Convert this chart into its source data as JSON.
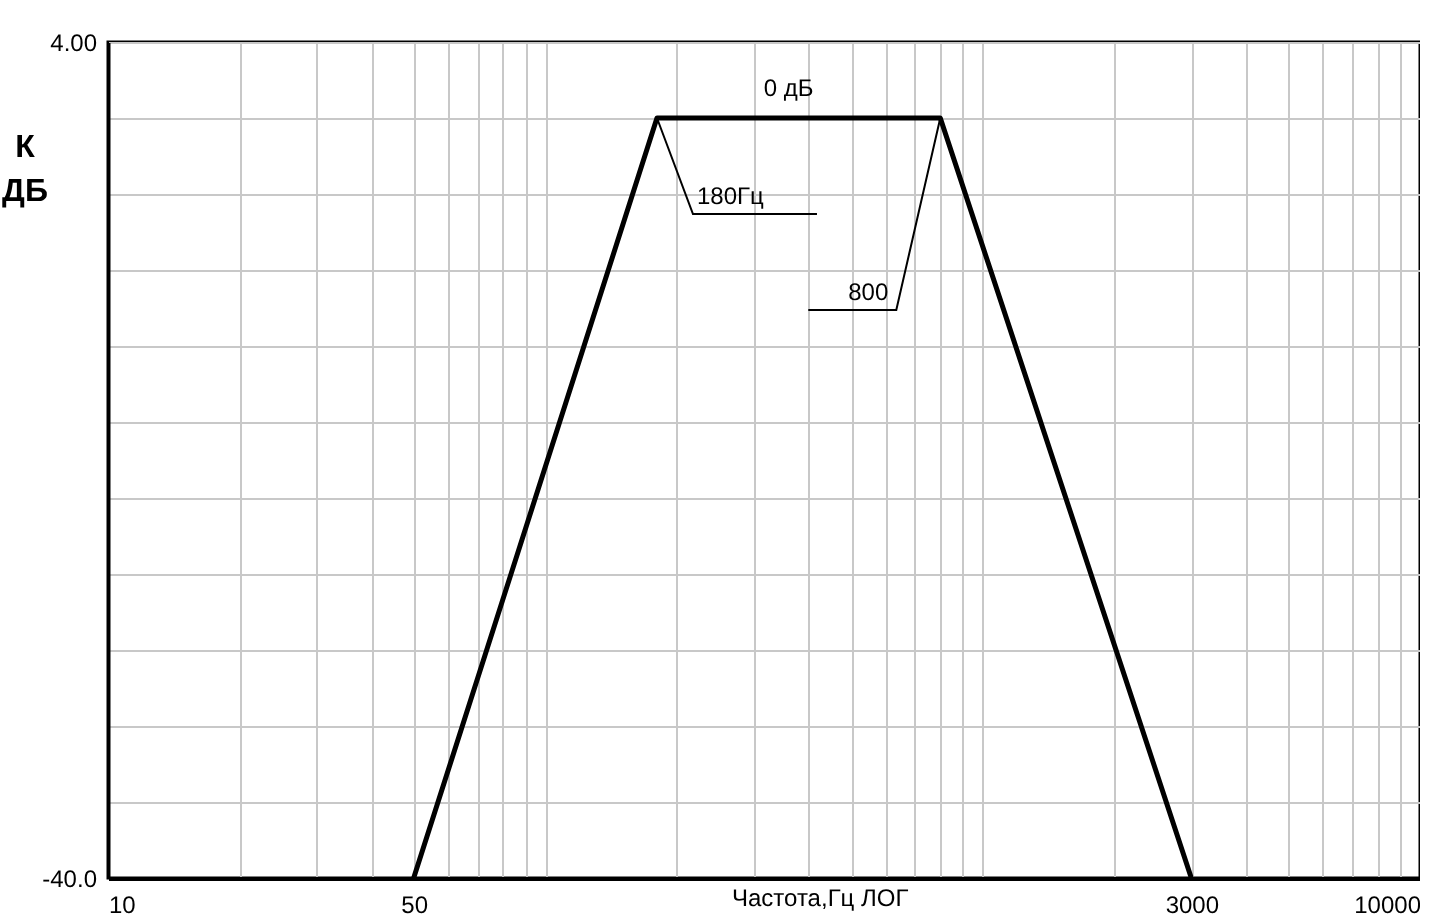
{
  "chart_data": {
    "type": "line",
    "xlabel": "Частота,Гц ЛОГ",
    "ylabel": "К ДБ",
    "log": "x",
    "x": [
      50,
      180,
      800,
      3000
    ],
    "series": [
      {
        "color": "#000000",
        "values": [
          -40,
          0,
          0,
          -40
        ]
      }
    ],
    "xlim": [
      10,
      10000
    ],
    "xticks": [
      10,
      {
        "value": 20,
        "label": null
      },
      {
        "value": 30,
        "label": null
      },
      {
        "value": 40,
        "label": null
      },
      50,
      {
        "value": 60,
        "label": null
      },
      {
        "value": 70,
        "label": null
      },
      {
        "value": 80,
        "label": null
      },
      {
        "value": 90,
        "label": null
      },
      {
        "value": 100,
        "label": null
      },
      {
        "value": 200,
        "label": null
      },
      {
        "value": 300,
        "label": null
      },
      {
        "value": 400,
        "label": null
      },
      {
        "value": 500,
        "label": null
      },
      {
        "value": 600,
        "label": null
      },
      {
        "value": 700,
        "label": null
      },
      {
        "value": 800,
        "label": null
      },
      {
        "value": 900,
        "label": null
      },
      {
        "value": 1000,
        "label": null
      },
      {
        "value": 2000,
        "label": null
      },
      3000,
      {
        "value": 4000,
        "label": null
      },
      {
        "value": 5000,
        "label": null
      },
      {
        "value": 6000,
        "label": null
      },
      {
        "value": 7000,
        "label": null
      },
      {
        "value": 8000,
        "label": null
      },
      {
        "value": 9000,
        "label": null
      },
      10000
    ],
    "ylim": [
      -40,
      4
    ],
    "yticks": [
      {
        "value": 4,
        "label": "4.00"
      },
      {
        "value": 0,
        "label": null
      },
      {
        "value": -4,
        "label": null
      },
      {
        "value": -8,
        "label": null
      },
      {
        "value": -12,
        "label": null
      },
      {
        "value": -16,
        "label": null
      },
      {
        "value": -20,
        "label": null
      },
      {
        "value": -24,
        "label": null
      },
      {
        "value": -28,
        "label": null
      },
      {
        "value": -32,
        "label": null
      },
      {
        "value": -36,
        "label": null
      },
      {
        "value": -40,
        "label": "-40.0"
      }
    ],
    "grid": true,
    "marker": "none",
    "line_style": "solid",
    "annotations": [
      {
        "text": "0 дБ",
        "x": 400,
        "y": 0
      },
      {
        "text": "180Гц",
        "x": 180,
        "y": 0
      },
      {
        "text": "800",
        "x": 800,
        "y": 0
      }
    ]
  }
}
